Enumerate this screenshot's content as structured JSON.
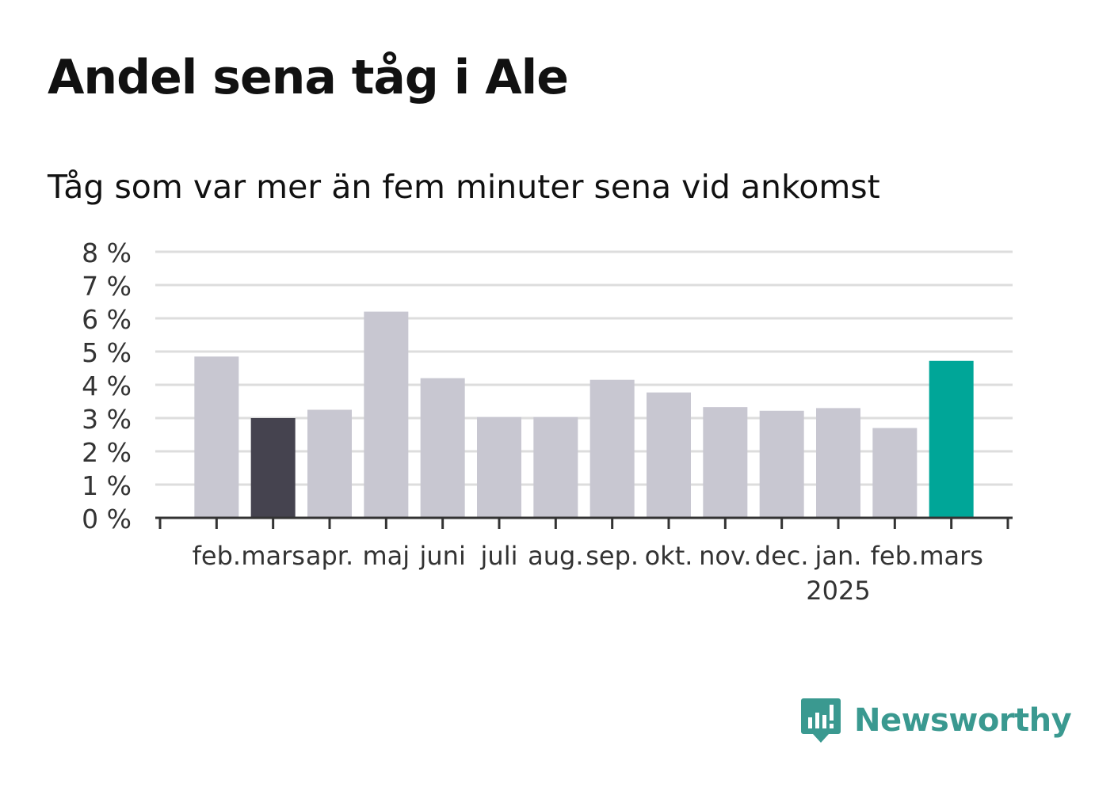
{
  "title": "Andel sena tåg i Ale",
  "subtitle": "Tåg som var mer än fem minuter sena vid ankomst",
  "brand": {
    "name": "Newsworthy",
    "icon": "newsworthy-logo-icon"
  },
  "colors": {
    "bar_default": "#c8c7d1",
    "bar_highlight_dark": "#45434f",
    "bar_highlight_latest": "#00a698",
    "gridline": "#dddddd",
    "axis": "#333333",
    "brand": "#3a9990"
  },
  "chart_data": {
    "type": "bar",
    "title": "Andel sena tåg i Ale",
    "subtitle": "Tåg som var mer än fem minuter sena vid ankomst",
    "categories": [
      "feb.",
      "mars",
      "apr.",
      "maj",
      "juni",
      "juli",
      "aug.",
      "sep.",
      "okt.",
      "nov.",
      "dec.",
      "jan.",
      "feb.",
      "mars"
    ],
    "year_annotation": {
      "text": "2025",
      "category_index": 11
    },
    "values": [
      4.85,
      3.0,
      3.25,
      6.2,
      4.2,
      3.03,
      3.03,
      4.15,
      3.77,
      3.33,
      3.22,
      3.3,
      2.7,
      4.72
    ],
    "bar_colors": [
      "default",
      "dark",
      "default",
      "default",
      "default",
      "default",
      "default",
      "default",
      "default",
      "default",
      "default",
      "default",
      "default",
      "latest"
    ],
    "y_ticks": [
      "0 %",
      "1 %",
      "2 %",
      "3 %",
      "4 %",
      "5 %",
      "6 %",
      "7 %",
      "8 %"
    ],
    "ylim": [
      0,
      8
    ],
    "grid": true,
    "legend": "none"
  }
}
